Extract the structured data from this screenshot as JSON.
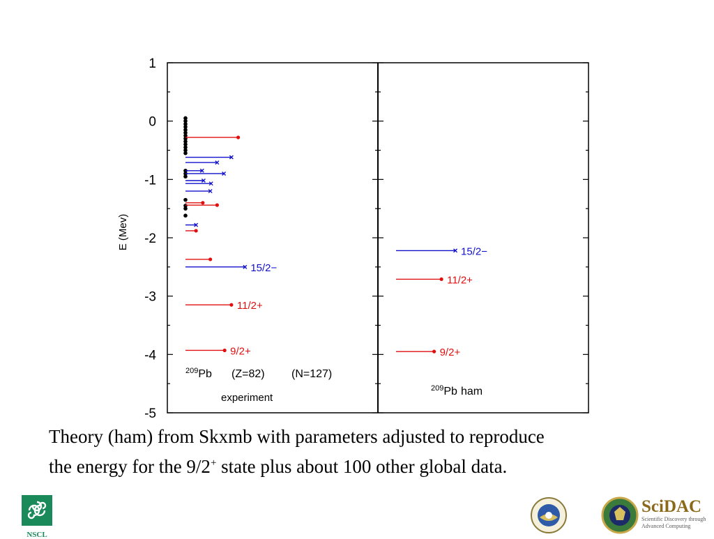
{
  "chart_data": {
    "type": "level-scheme",
    "ylabel": "E (Mev)",
    "ylim": [
      -5,
      1
    ],
    "yticks": [
      1,
      0,
      -1,
      -2,
      -3,
      -4,
      -5
    ],
    "panels": [
      {
        "name": "experiment",
        "nucleus_mass": "209",
        "nucleus_symbol": "Pb",
        "z_text": "(Z=82)",
        "n_text": "(N=127)",
        "caption": "experiment",
        "gs_points": [
          0.05,
          0.0,
          -0.05,
          -0.1,
          -0.15,
          -0.2,
          -0.25,
          -0.3,
          -0.35,
          -0.4,
          -0.45,
          -0.5,
          -0.55,
          -0.85,
          -0.9,
          -0.95,
          -1.35,
          -1.45,
          -1.5,
          -1.62
        ],
        "levels": [
          {
            "energy": -0.28,
            "length": 0.7,
            "color": "#e01010",
            "marker": "dot"
          },
          {
            "energy": -0.62,
            "length": 0.61,
            "color": "#1010cc",
            "marker": "x"
          },
          {
            "energy": -0.71,
            "length": 0.42,
            "color": "#1010cc",
            "marker": "x"
          },
          {
            "energy": -0.85,
            "length": 0.22,
            "color": "#1010cc",
            "marker": "x"
          },
          {
            "energy": -0.9,
            "length": 0.51,
            "color": "#1010cc",
            "marker": "x"
          },
          {
            "energy": -1.02,
            "length": 0.24,
            "color": "#1010cc",
            "marker": "x"
          },
          {
            "energy": -1.07,
            "length": 0.34,
            "color": "#1010cc",
            "marker": "x"
          },
          {
            "energy": -1.2,
            "length": 0.33,
            "color": "#1010cc",
            "marker": "x"
          },
          {
            "energy": -1.4,
            "length": 0.23,
            "color": "#e01010",
            "marker": "dot"
          },
          {
            "energy": -1.44,
            "length": 0.42,
            "color": "#e01010",
            "marker": "dot"
          },
          {
            "energy": -1.78,
            "length": 0.14,
            "color": "#1010cc",
            "marker": "x"
          },
          {
            "energy": -1.88,
            "length": 0.14,
            "color": "#e01010",
            "marker": "dot"
          },
          {
            "energy": -2.37,
            "length": 0.33,
            "color": "#e01010",
            "marker": "dot"
          },
          {
            "energy": -2.5,
            "length": 0.79,
            "color": "#1010cc",
            "marker": "x",
            "label": "15/2−"
          },
          {
            "energy": -3.15,
            "length": 0.61,
            "color": "#e01010",
            "marker": "dot",
            "label": "11/2+"
          },
          {
            "energy": -3.93,
            "length": 0.52,
            "color": "#e01010",
            "marker": "dot",
            "label": "9/2+"
          }
        ]
      },
      {
        "name": "ham",
        "nucleus_mass": "209",
        "nucleus_symbol": "Pb",
        "caption": "ham",
        "levels": [
          {
            "energy": -2.22,
            "length": 0.81,
            "color": "#1010cc",
            "marker": "x",
            "label": "15/2−"
          },
          {
            "energy": -2.71,
            "length": 0.62,
            "color": "#e01010",
            "marker": "dot",
            "label": "11/2+"
          },
          {
            "energy": -3.95,
            "length": 0.52,
            "color": "#e01010",
            "marker": "dot",
            "label": "9/2+"
          }
        ]
      }
    ]
  },
  "caption": {
    "line1": "Theory (ham) from  Skxmb with parameters adjusted to reproduce",
    "line2_pre": "the energy for the 9/2",
    "line2_sup": "+",
    "line2_post": " state plus about 100 other global data."
  },
  "logos": {
    "nscl_text": "NSCL",
    "scidac_title": "SciDAC",
    "scidac_line1": "Scientific Discovery through",
    "scidac_line2": "Advanced Computing",
    "nscl_color": "#1a8a5a",
    "scidac_color": "#8a6a1a"
  }
}
